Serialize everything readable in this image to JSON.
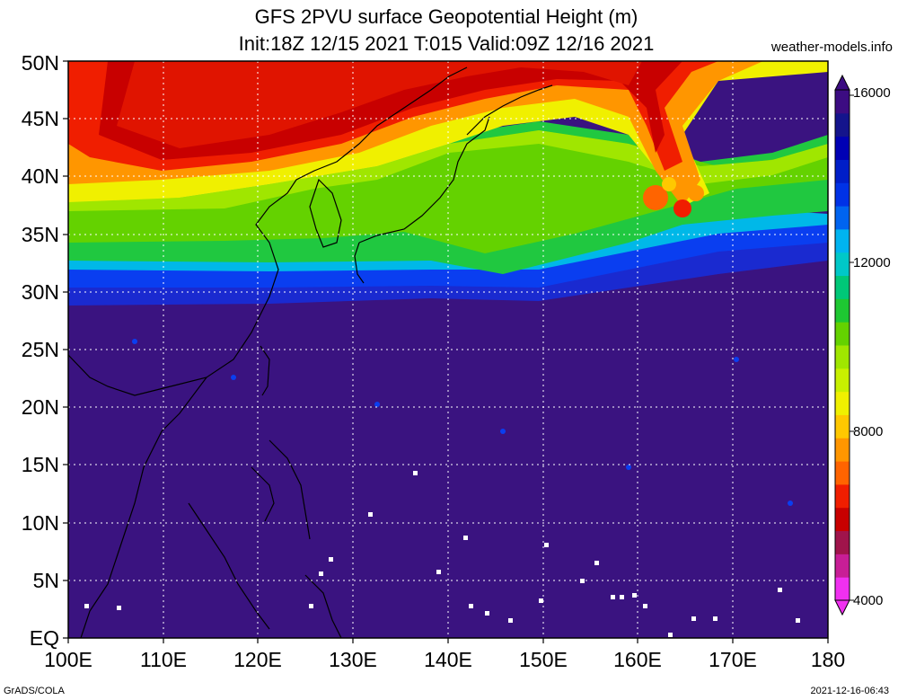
{
  "title_line1": "GFS 2PVU surface Geopotential Height (m)",
  "title_line2": "Init:18Z 12/15 2021 T:015 Valid:09Z 12/16 2021",
  "credit": "weather-models.info",
  "footer_left": "GrADS/COLA",
  "footer_right": "2021-12-16-06:43",
  "map": {
    "lat_labels": [
      "EQ",
      "5N",
      "10N",
      "15N",
      "20N",
      "25N",
      "30N",
      "35N",
      "40N",
      "45N",
      "50N"
    ],
    "lon_labels": [
      "100E",
      "110E",
      "120E",
      "130E",
      "140E",
      "150E",
      "160E",
      "170E",
      "180"
    ],
    "lat_range": [
      0,
      50
    ],
    "lon_range": [
      100,
      180
    ],
    "grid": "dotted"
  },
  "colorbar": {
    "labels": [
      "4000",
      "8000",
      "12000",
      "16000"
    ],
    "colors": [
      "#f030f0",
      "#c81e96",
      "#a0144b",
      "#c80000",
      "#f01e00",
      "#ff6400",
      "#ff9600",
      "#ffc800",
      "#f0f000",
      "#c8f000",
      "#a0e600",
      "#64d200",
      "#1ec832",
      "#00c878",
      "#00c8c8",
      "#00b4f0",
      "#0064f0",
      "#0032e6",
      "#001ec8",
      "#0000b4",
      "#14148c",
      "#3c0c82"
    ]
  }
}
